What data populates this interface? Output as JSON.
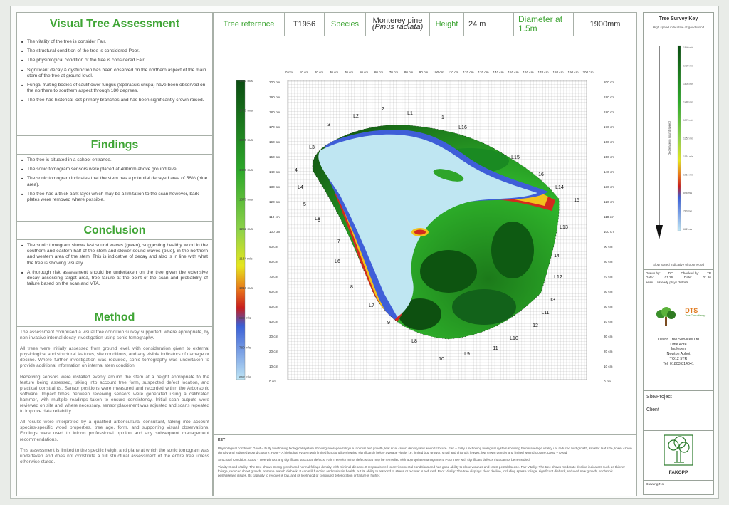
{
  "assessment": {
    "title": "Visual Tree Assessment",
    "bullets": [
      "The vitality of the tree is consider Fair.",
      "The structural condition of the tree is considered Poor.",
      "The physiological condition of the tree is considered Fair.",
      "Significant decay & dysfunction has been observed on the northern aspect of the main stem of the tree at ground level.",
      "Fungal fruiting bodies of cauliflower fungus (Sparassis crispa) have been observed on the northern to southern aspect through 180 degrees.",
      "The tree has historical lost primary branches and has been significantly crown raised."
    ]
  },
  "findings": {
    "title": "Findings",
    "bullets": [
      "The tree is situated in a school entrance.",
      "The sonic tomogram sensors were placed at 400mm above ground level.",
      "The sonic tomogram indicates that the stem has a potential decayed area of 56% (blue area).",
      "The tree has a thick bark layer which may be a limitation to the scan however, bark plates were removed where possible."
    ]
  },
  "conclusion": {
    "title": "Conclusion",
    "bullets": [
      "The sonic tomogram shows fast sound waves (green), suggesting healthy wood in the southern and eastern half of the stem and slower sound waves (blue), in the northern and western area of the stem. This is indicative of decay and also is in line with what the tree is showing visually.",
      "A thorough risk assessment should be undertaken on the tree given the extensive decay assessing target area, tree failure at the point of the scan and probability of failure based on the scan and VTA."
    ]
  },
  "method": {
    "title": "Method",
    "paragraphs": [
      "The assessment comprised a visual tree condition survey supported, where appropriate, by non-invasive internal decay investigation using sonic tomography.",
      "All trees were initially assessed from ground level, with consideration given to external physiological and structural features, site conditions, and any visible indicators of damage or decline. Where further investigation was required, sonic tomography was undertaken to provide additional information on internal stem condition.",
      "Receiving sensors were installed evenly around the stem at a height appropriate to the feature being assessed, taking into account tree form, suspected defect location, and practical constraints. Sensor positions were measured and recorded within the Arborsonic software. Impact times between receiving sensors were generated using a calibrated hammer, with multiple readings taken to ensure consistency. Initial scan outputs were reviewed on site and, where necessary, sensor placement was adjusted and scans repeated to improve data reliability.",
      "All results were interpreted by a qualified arboricultural consultant, taking into account species-specific wood properties, tree age, form, and supporting visual observations. Findings were used to inform professional opinion and any subsequent management recommendations.",
      "This assessment is limited to the specific height and plane at which the sonic tomogram was undertaken and does not constitute a full structural assessment of the entire tree unless otherwise stated."
    ]
  },
  "header": {
    "tree_ref_label": "Tree reference",
    "tree_ref_value": "T1956",
    "species_label": "Species",
    "species_common": "Monterey pine",
    "species_latin": "(Pinus radiata)",
    "height_label": "Height",
    "height_value": "24 m",
    "diameter_label": "Diameter at 1.5m",
    "diameter_value": "1900mm"
  },
  "tomogram": {
    "x_ticks": [
      "0 cm",
      "10 cm",
      "20 cm",
      "30 cm",
      "40 cm",
      "50 cm",
      "60 cm",
      "70 cm",
      "80 cm",
      "90 cm",
      "100 cm",
      "110 cm",
      "120 cm",
      "130 cm",
      "140 cm",
      "150 cm",
      "160 cm",
      "170 cm",
      "180 cm",
      "190 cm",
      "200 cm"
    ],
    "y_ticks": [
      "200 cm",
      "190 cm",
      "180 cm",
      "170 cm",
      "160 cm",
      "150 cm",
      "140 cm",
      "130 cm",
      "120 cm",
      "110 cm",
      "100 cm",
      "90 cm",
      "80 cm",
      "70 cm",
      "60 cm",
      "50 cm",
      "40 cm",
      "30 cm",
      "20 cm",
      "10 cm",
      "0 cm"
    ],
    "scale_labels": [
      "1840 m/s",
      "1720 m/s",
      "1606 m/s",
      "1488 m/s",
      "1370 m/s",
      "1252 m/s",
      "1134 m/s",
      "1016 m/s",
      "898 m/s",
      "780 m/s",
      "662 m/s"
    ],
    "sensors": [
      "1",
      "2",
      "3",
      "4",
      "5",
      "6",
      "7",
      "8",
      "9",
      "10",
      "11",
      "12",
      "13",
      "14",
      "15",
      "16"
    ],
    "links": [
      "L1",
      "L2",
      "L3",
      "L4",
      "L5",
      "L6",
      "L7",
      "L8",
      "L9",
      "L10",
      "L11",
      "L12",
      "L13",
      "L14",
      "L15",
      "L16"
    ]
  },
  "key": {
    "title": "KEY",
    "physiological": "Physiological condition: Good – Fully functioning biological system showing average vitality i.e. normal bud growth, leaf size, crown density and wound closure. Fair – Fully functioning biological system showing below average vitality i.e. reduced bud growth, smaller leaf size, lower crown density and reduced wound closure. Poor – A biological system with limited functionality showing significantly below average vitality i.e. limited bud growth, small and chlorotic leaves, low crown density and limited wound closure. Dead – Dead",
    "structural": "Structural Condition: Good - Tree without any significant structural defects. Fair Tree with minor defects that may be remedied with appropriate management. Poor Tree with significant defects that cannot be remedied",
    "vitality": "Vitality: Good Vitality: The tree shows strong growth and normal foliage density, with minimal dieback. It responds well to environmental conditions and has good ability to close wounds and resist pests/disease. Fair Vitality: The tree shows moderate decline indicators such as thinner foliage, reduced shoot growth, or some branch dieback. It can still function and maintain health, but its ability to respond to stress or recover is reduced. Poor Vitality: The tree displays clear decline, including sparse foliage, significant dieback, reduced new growth, or chronic pest/disease issues. Its capacity to recover is low, and its likelihood of continued deterioration or failure is higher."
  },
  "survey_key": {
    "title": "Tree Survey Key",
    "top_note": "High speed indicative of good wood",
    "side_note": "Decrease in sound speed",
    "bottom_note": "Slow speed indicative of poor wood",
    "drawn_by_label": "Drawn by:",
    "drawn_by": "DC",
    "checked_by_label": "Checked by:",
    "checked_by": "TP",
    "date_label": "Date:",
    "date1": "01.26",
    "date2": "01.26",
    "www": "www",
    "www_value": "//steady plays distorts"
  },
  "company": {
    "logo_text": "DTS",
    "logo_sub": "Tree Consultancy",
    "address": [
      "Devon Tree Services Ltd",
      "Little Acre",
      "Ipplepen",
      "Newton Abbot",
      "TQ12 5TR",
      "Tel: 01803 814041"
    ]
  },
  "site": {
    "project_label": "Site/Project",
    "client_label": "Client"
  },
  "fakopp": "FAKOPP",
  "drawing_no_label": "Drawing No."
}
